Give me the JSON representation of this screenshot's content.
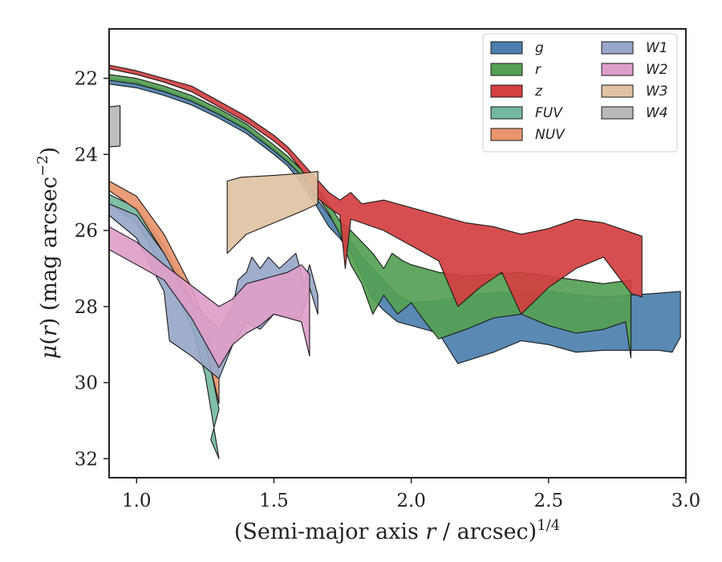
{
  "chart_data": {
    "type": "area",
    "xlabel": "(Semi-major axis r / arcsec)",
    "xlabel_main": "(Semi-major axis ",
    "xlabel_var": "r",
    "xlabel_tail": " / arcsec)",
    "xlabel_exp": "1/4",
    "ylabel_mu": "μ",
    "ylabel_r": "r",
    "ylabel_paren_open": "(",
    "ylabel_paren_close": ") (mag arcsec",
    "ylabel_exp": "−2",
    "ylabel_end": ")",
    "xlim": [
      0.9,
      3.0
    ],
    "ylim": [
      32.5,
      20.7
    ],
    "y_inverted": true,
    "xticks": [
      1.0,
      1.5,
      2.0,
      2.5,
      3.0
    ],
    "xtick_labels": [
      "1.0",
      "1.5",
      "2.0",
      "2.5",
      "3.0"
    ],
    "yticks": [
      22,
      24,
      26,
      28,
      30,
      32
    ],
    "ytick_labels": [
      "22",
      "24",
      "26",
      "28",
      "30",
      "32"
    ],
    "grid": false,
    "legend_position": "top-right",
    "legend_columns": 2,
    "series": [
      {
        "name": "g",
        "color": "#4c7fad",
        "upper": [
          [
            0.9,
            22.0
          ],
          [
            1.0,
            22.1
          ],
          [
            1.1,
            22.3
          ],
          [
            1.2,
            22.55
          ],
          [
            1.3,
            22.9
          ],
          [
            1.4,
            23.3
          ],
          [
            1.5,
            23.85
          ],
          [
            1.55,
            24.15
          ],
          [
            1.6,
            24.55
          ],
          [
            1.65,
            25.1
          ],
          [
            1.7,
            25.6
          ],
          [
            1.74,
            26.0
          ],
          [
            1.78,
            26.3
          ],
          [
            1.82,
            26.7
          ],
          [
            1.86,
            27.0
          ],
          [
            1.9,
            27.3
          ],
          [
            1.95,
            27.7
          ],
          [
            2.0,
            27.9
          ],
          [
            2.1,
            27.85
          ],
          [
            2.2,
            27.7
          ],
          [
            2.3,
            27.65
          ],
          [
            2.4,
            27.6
          ],
          [
            2.5,
            27.6
          ],
          [
            2.6,
            27.7
          ],
          [
            2.7,
            27.75
          ],
          [
            2.8,
            27.7
          ],
          [
            2.9,
            27.65
          ],
          [
            2.98,
            27.6
          ]
        ],
        "lower": [
          [
            0.9,
            22.15
          ],
          [
            1.0,
            22.25
          ],
          [
            1.1,
            22.45
          ],
          [
            1.2,
            22.7
          ],
          [
            1.3,
            23.05
          ],
          [
            1.4,
            23.45
          ],
          [
            1.5,
            24.0
          ],
          [
            1.55,
            24.3
          ],
          [
            1.6,
            24.75
          ],
          [
            1.65,
            25.3
          ],
          [
            1.7,
            25.9
          ],
          [
            1.74,
            26.2
          ],
          [
            1.78,
            26.6
          ],
          [
            1.82,
            27.2
          ],
          [
            1.86,
            27.8
          ],
          [
            1.9,
            28.1
          ],
          [
            1.95,
            28.4
          ],
          [
            2.0,
            28.5
          ],
          [
            2.1,
            28.7
          ],
          [
            2.17,
            29.5
          ],
          [
            2.3,
            29.2
          ],
          [
            2.4,
            28.9
          ],
          [
            2.5,
            29.0
          ],
          [
            2.6,
            29.2
          ],
          [
            2.7,
            29.15
          ],
          [
            2.8,
            29.15
          ],
          [
            2.9,
            29.15
          ],
          [
            2.95,
            29.2
          ],
          [
            2.98,
            28.8
          ]
        ]
      },
      {
        "name": "r",
        "color": "#55a055",
        "upper": [
          [
            0.9,
            21.9
          ],
          [
            1.0,
            22.0
          ],
          [
            1.1,
            22.2
          ],
          [
            1.2,
            22.45
          ],
          [
            1.3,
            22.8
          ],
          [
            1.4,
            23.2
          ],
          [
            1.5,
            23.75
          ],
          [
            1.55,
            24.05
          ],
          [
            1.6,
            24.4
          ],
          [
            1.65,
            24.8
          ],
          [
            1.7,
            25.3
          ],
          [
            1.74,
            25.75
          ],
          [
            1.78,
            26.0
          ],
          [
            1.82,
            26.3
          ],
          [
            1.86,
            26.6
          ],
          [
            1.9,
            27.0
          ],
          [
            1.93,
            26.6
          ],
          [
            1.97,
            26.8
          ],
          [
            2.0,
            26.9
          ],
          [
            2.1,
            27.1
          ],
          [
            2.2,
            27.2
          ],
          [
            2.3,
            27.15
          ],
          [
            2.4,
            27.1
          ],
          [
            2.5,
            27.2
          ],
          [
            2.6,
            27.3
          ],
          [
            2.7,
            27.4
          ],
          [
            2.8,
            27.3
          ]
        ],
        "lower": [
          [
            0.9,
            22.05
          ],
          [
            1.0,
            22.15
          ],
          [
            1.1,
            22.35
          ],
          [
            1.2,
            22.6
          ],
          [
            1.3,
            22.95
          ],
          [
            1.4,
            23.35
          ],
          [
            1.5,
            23.9
          ],
          [
            1.55,
            24.2
          ],
          [
            1.6,
            24.55
          ],
          [
            1.65,
            25.0
          ],
          [
            1.7,
            25.55
          ],
          [
            1.74,
            26.1
          ],
          [
            1.78,
            26.9
          ],
          [
            1.82,
            27.4
          ],
          [
            1.86,
            28.2
          ],
          [
            1.9,
            27.7
          ],
          [
            1.95,
            28.2
          ],
          [
            2.0,
            27.9
          ],
          [
            2.05,
            28.4
          ],
          [
            2.1,
            28.85
          ],
          [
            2.2,
            28.6
          ],
          [
            2.3,
            28.3
          ],
          [
            2.4,
            28.2
          ],
          [
            2.5,
            28.5
          ],
          [
            2.6,
            28.7
          ],
          [
            2.7,
            28.6
          ],
          [
            2.78,
            28.4
          ],
          [
            2.8,
            29.35
          ]
        ]
      },
      {
        "name": "z",
        "color": "#d33f40",
        "upper": [
          [
            0.9,
            21.65
          ],
          [
            1.0,
            21.8
          ],
          [
            1.1,
            22.0
          ],
          [
            1.2,
            22.2
          ],
          [
            1.3,
            22.6
          ],
          [
            1.4,
            23.0
          ],
          [
            1.5,
            23.5
          ],
          [
            1.55,
            23.8
          ],
          [
            1.6,
            24.2
          ],
          [
            1.65,
            24.6
          ],
          [
            1.7,
            25.0
          ],
          [
            1.74,
            25.2
          ],
          [
            1.78,
            25.0
          ],
          [
            1.82,
            25.3
          ],
          [
            1.9,
            25.2
          ],
          [
            2.0,
            25.4
          ],
          [
            2.1,
            25.6
          ],
          [
            2.2,
            25.8
          ],
          [
            2.3,
            25.9
          ],
          [
            2.4,
            26.1
          ],
          [
            2.5,
            25.95
          ],
          [
            2.6,
            25.7
          ],
          [
            2.7,
            25.8
          ],
          [
            2.84,
            26.15
          ]
        ],
        "lower": [
          [
            0.9,
            21.75
          ],
          [
            1.0,
            21.9
          ],
          [
            1.1,
            22.1
          ],
          [
            1.2,
            22.35
          ],
          [
            1.3,
            22.75
          ],
          [
            1.4,
            23.15
          ],
          [
            1.5,
            23.65
          ],
          [
            1.55,
            23.95
          ],
          [
            1.6,
            24.4
          ],
          [
            1.65,
            25.1
          ],
          [
            1.7,
            25.4
          ],
          [
            1.74,
            25.6
          ],
          [
            1.76,
            27.0
          ],
          [
            1.78,
            25.7
          ],
          [
            1.82,
            25.8
          ],
          [
            1.9,
            26.0
          ],
          [
            2.0,
            26.4
          ],
          [
            2.1,
            26.8
          ],
          [
            2.17,
            28.0
          ],
          [
            2.25,
            27.5
          ],
          [
            2.33,
            27.1
          ],
          [
            2.4,
            28.2
          ],
          [
            2.5,
            27.5
          ],
          [
            2.6,
            27.0
          ],
          [
            2.7,
            26.7
          ],
          [
            2.8,
            27.65
          ],
          [
            2.84,
            27.75
          ]
        ]
      },
      {
        "name": "FUV",
        "color": "#74b8a0",
        "upper": [
          [
            0.9,
            25.05
          ],
          [
            1.0,
            25.4
          ],
          [
            1.1,
            26.4
          ],
          [
            1.2,
            27.8
          ],
          [
            1.25,
            28.9
          ],
          [
            1.3,
            30.7
          ]
        ],
        "lower": [
          [
            0.9,
            25.3
          ],
          [
            1.0,
            25.8
          ],
          [
            1.1,
            27.0
          ],
          [
            1.2,
            28.5
          ],
          [
            1.25,
            29.8
          ],
          [
            1.3,
            32.0
          ],
          [
            1.27,
            31.5
          ]
        ]
      },
      {
        "name": "NUV",
        "color": "#e8956d",
        "upper": [
          [
            0.9,
            24.7
          ],
          [
            1.0,
            25.1
          ],
          [
            1.1,
            26.1
          ],
          [
            1.2,
            27.5
          ],
          [
            1.25,
            28.4
          ],
          [
            1.3,
            29.7
          ]
        ],
        "lower": [
          [
            0.9,
            24.95
          ],
          [
            1.0,
            25.45
          ],
          [
            1.1,
            26.6
          ],
          [
            1.2,
            28.0
          ],
          [
            1.25,
            29.0
          ],
          [
            1.3,
            30.55
          ]
        ]
      },
      {
        "name": "W1",
        "color": "#98a7c9",
        "upper": [
          [
            0.9,
            25.3
          ],
          [
            1.0,
            25.6
          ],
          [
            1.1,
            26.6
          ],
          [
            1.2,
            27.9
          ],
          [
            1.3,
            28.6
          ],
          [
            1.35,
            28.0
          ],
          [
            1.37,
            27.3
          ],
          [
            1.4,
            27.1
          ],
          [
            1.42,
            26.7
          ],
          [
            1.45,
            27.0
          ],
          [
            1.48,
            26.7
          ],
          [
            1.52,
            27.0
          ],
          [
            1.55,
            26.8
          ],
          [
            1.58,
            26.6
          ],
          [
            1.61,
            27.4
          ],
          [
            1.63,
            26.9
          ],
          [
            1.66,
            27.7
          ]
        ],
        "lower": [
          [
            0.9,
            25.6
          ],
          [
            1.0,
            26.2
          ],
          [
            1.1,
            27.6
          ],
          [
            1.12,
            28.9
          ],
          [
            1.2,
            29.3
          ],
          [
            1.3,
            29.9
          ],
          [
            1.35,
            29.0
          ],
          [
            1.4,
            28.4
          ],
          [
            1.45,
            28.6
          ],
          [
            1.5,
            28.2
          ],
          [
            1.55,
            28.3
          ],
          [
            1.6,
            28.3
          ],
          [
            1.63,
            27.5
          ],
          [
            1.66,
            28.2
          ]
        ]
      },
      {
        "name": "W2",
        "color": "#dd9ec9",
        "upper": [
          [
            0.9,
            25.9
          ],
          [
            1.0,
            26.3
          ],
          [
            1.1,
            26.9
          ],
          [
            1.3,
            28.0
          ],
          [
            1.35,
            27.8
          ],
          [
            1.4,
            27.4
          ],
          [
            1.45,
            27.3
          ],
          [
            1.5,
            27.2
          ],
          [
            1.55,
            27.1
          ],
          [
            1.6,
            26.9
          ],
          [
            1.63,
            27.15
          ]
        ],
        "lower": [
          [
            0.9,
            26.5
          ],
          [
            1.0,
            26.9
          ],
          [
            1.1,
            27.3
          ],
          [
            1.2,
            28.3
          ],
          [
            1.3,
            29.6
          ],
          [
            1.35,
            29.0
          ],
          [
            1.4,
            28.7
          ],
          [
            1.45,
            28.5
          ],
          [
            1.5,
            28.2
          ],
          [
            1.55,
            28.3
          ],
          [
            1.6,
            28.4
          ],
          [
            1.63,
            29.3
          ]
        ]
      },
      {
        "name": "W3",
        "color": "#dfc3a3",
        "upper": [
          [
            1.33,
            24.7
          ],
          [
            1.38,
            24.6
          ],
          [
            1.5,
            24.55
          ],
          [
            1.6,
            24.5
          ],
          [
            1.66,
            24.45
          ]
        ],
        "lower": [
          [
            1.33,
            26.6
          ],
          [
            1.4,
            26.1
          ],
          [
            1.5,
            25.8
          ],
          [
            1.6,
            25.5
          ],
          [
            1.66,
            25.3
          ]
        ]
      },
      {
        "name": "W4",
        "color": "#b9b9b9",
        "upper": [
          [
            0.9,
            22.75
          ],
          [
            0.94,
            22.72
          ]
        ],
        "lower": [
          [
            0.9,
            23.8
          ],
          [
            0.94,
            23.78
          ]
        ]
      }
    ]
  }
}
